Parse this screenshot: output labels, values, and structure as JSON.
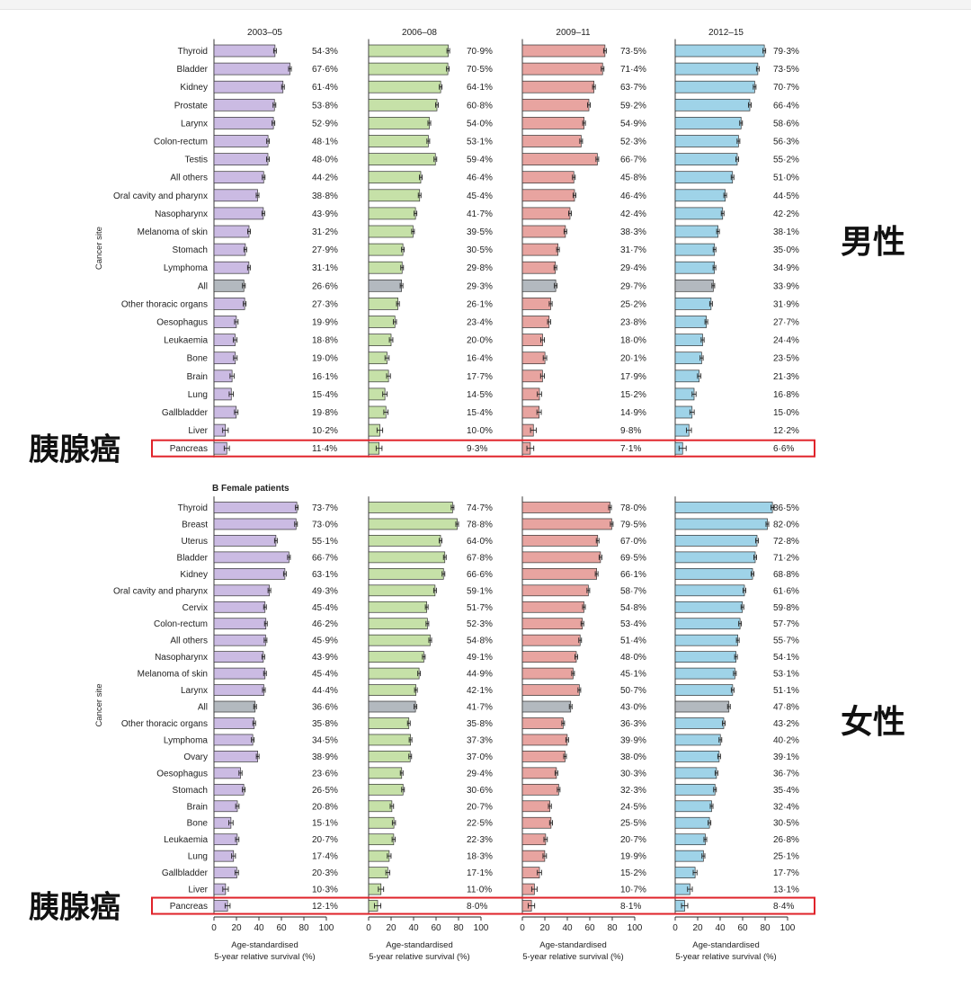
{
  "chart_data": [
    {
      "type": "bar",
      "orientation": "horizontal",
      "section_label": "",
      "ylabel": "Cancer site",
      "side_label": "男性",
      "highlight_label": "胰腺癌",
      "highlight_category": "Pancreas",
      "categories": [
        "Thyroid",
        "Bladder",
        "Kidney",
        "Prostate",
        "Larynx",
        "Colon-rectum",
        "Testis",
        "All others",
        "Oral cavity and pharynx",
        "Nasopharynx",
        "Melanoma of skin",
        "Stomach",
        "Lymphoma",
        "All",
        "Other thoracic organs",
        "Oesophagus",
        "Leukaemia",
        "Bone",
        "Brain",
        "Lung",
        "Gallbladder",
        "Liver",
        "Pancreas"
      ],
      "series": [
        {
          "name": "2003–05",
          "color": "#cbbbe3",
          "values": [
            54.3,
            67.6,
            61.4,
            53.8,
            52.9,
            48.1,
            48.0,
            44.2,
            38.8,
            43.9,
            31.2,
            27.9,
            31.1,
            26.6,
            27.3,
            19.9,
            18.8,
            19.0,
            16.1,
            15.4,
            19.8,
            10.2,
            11.4
          ],
          "labels": [
            "54·3%",
            "67·6%",
            "61·4%",
            "53·8%",
            "52·9%",
            "48·1%",
            "48·0%",
            "44·2%",
            "38·8%",
            "43·9%",
            "31·2%",
            "27·9%",
            "31·1%",
            "26·6%",
            "27·3%",
            "19·9%",
            "18·8%",
            "19·0%",
            "16·1%",
            "15·4%",
            "19·8%",
            "10·2%",
            "11·4%"
          ]
        },
        {
          "name": "2006–08",
          "color": "#c6e1a8",
          "values": [
            70.9,
            70.5,
            64.1,
            60.8,
            54.0,
            53.1,
            59.4,
            46.4,
            45.4,
            41.7,
            39.5,
            30.5,
            29.8,
            29.3,
            26.1,
            23.4,
            20.0,
            16.4,
            17.7,
            14.5,
            15.4,
            10.0,
            9.3
          ],
          "labels": [
            "70·9%",
            "70·5%",
            "64·1%",
            "60·8%",
            "54·0%",
            "53·1%",
            "59·4%",
            "46·4%",
            "45·4%",
            "41·7%",
            "39·5%",
            "30·5%",
            "29·8%",
            "29·3%",
            "26·1%",
            "23·4%",
            "20·0%",
            "16·4%",
            "17·7%",
            "14·5%",
            "15·4%",
            "10·0%",
            "9·3%"
          ]
        },
        {
          "name": "2009–11",
          "color": "#e8a4a0",
          "values": [
            73.5,
            71.4,
            63.7,
            59.2,
            54.9,
            52.3,
            66.7,
            45.8,
            46.4,
            42.4,
            38.3,
            31.7,
            29.4,
            29.7,
            25.2,
            23.8,
            18.0,
            20.1,
            17.9,
            15.2,
            14.9,
            9.8,
            7.1
          ],
          "labels": [
            "73·5%",
            "71·4%",
            "63·7%",
            "59·2%",
            "54·9%",
            "52·3%",
            "66·7%",
            "45·8%",
            "46·4%",
            "42·4%",
            "38·3%",
            "31·7%",
            "29·4%",
            "29·7%",
            "25·2%",
            "23·8%",
            "18·0%",
            "20·1%",
            "17·9%",
            "15·2%",
            "14·9%",
            "9·8%",
            "7·1%"
          ]
        },
        {
          "name": "2012–15",
          "color": "#9fd3e8",
          "values": [
            79.3,
            73.5,
            70.7,
            66.4,
            58.6,
            56.3,
            55.2,
            51.0,
            44.5,
            42.2,
            38.1,
            35.0,
            34.9,
            33.9,
            31.9,
            27.7,
            24.4,
            23.5,
            21.3,
            16.8,
            15.0,
            12.2,
            6.6
          ],
          "labels": [
            "79·3%",
            "73·5%",
            "70·7%",
            "66·4%",
            "58·6%",
            "56·3%",
            "55·2%",
            "51·0%",
            "44·5%",
            "42·2%",
            "38·1%",
            "35·0%",
            "34·9%",
            "33·9%",
            "31·9%",
            "27·7%",
            "24·4%",
            "23·5%",
            "21·3%",
            "16·8%",
            "15·0%",
            "12·2%",
            "6·6%"
          ]
        }
      ],
      "all_color": "#b3b9bf",
      "xlim": [
        0,
        100
      ]
    },
    {
      "type": "bar",
      "orientation": "horizontal",
      "section_label": "B  Female patients",
      "ylabel": "Cancer site",
      "side_label": "女性",
      "highlight_label": "胰腺癌",
      "highlight_category": "Pancreas",
      "categories": [
        "Thyroid",
        "Breast",
        "Uterus",
        "Bladder",
        "Kidney",
        "Oral cavity and pharynx",
        "Cervix",
        "Colon-rectum",
        "All others",
        "Nasopharynx",
        "Melanoma of skin",
        "Larynx",
        "All",
        "Other thoracic organs",
        "Lymphoma",
        "Ovary",
        "Oesophagus",
        "Stomach",
        "Brain",
        "Bone",
        "Leukaemia",
        "Lung",
        "Gallbladder",
        "Liver",
        "Pancreas"
      ],
      "series": [
        {
          "name": "2003–05",
          "color": "#cbbbe3",
          "values": [
            73.7,
            73.0,
            55.1,
            66.7,
            63.1,
            49.3,
            45.4,
            46.2,
            45.9,
            43.9,
            45.4,
            44.4,
            36.6,
            35.8,
            34.5,
            38.9,
            23.6,
            26.5,
            20.8,
            15.1,
            20.7,
            17.4,
            20.3,
            10.3,
            12.1
          ],
          "labels": [
            "73·7%",
            "73·0%",
            "55·1%",
            "66·7%",
            "63·1%",
            "49·3%",
            "45·4%",
            "46·2%",
            "45·9%",
            "43·9%",
            "45·4%",
            "44·4%",
            "36·6%",
            "35·8%",
            "34·5%",
            "38·9%",
            "23·6%",
            "26·5%",
            "20·8%",
            "15·1%",
            "20·7%",
            "17·4%",
            "20·3%",
            "10·3%",
            "12·1%"
          ]
        },
        {
          "name": "2006–08",
          "color": "#c6e1a8",
          "values": [
            74.7,
            78.8,
            64.0,
            67.8,
            66.6,
            59.1,
            51.7,
            52.3,
            54.8,
            49.1,
            44.9,
            42.1,
            41.7,
            35.8,
            37.3,
            37.0,
            29.4,
            30.6,
            20.7,
            22.5,
            22.3,
            18.3,
            17.1,
            11.0,
            8.0
          ],
          "labels": [
            "74·7%",
            "78·8%",
            "64·0%",
            "67·8%",
            "66·6%",
            "59·1%",
            "51·7%",
            "52·3%",
            "54·8%",
            "49·1%",
            "44·9%",
            "42·1%",
            "41·7%",
            "35·8%",
            "37·3%",
            "37·0%",
            "29·4%",
            "30·6%",
            "20·7%",
            "22·5%",
            "22·3%",
            "18·3%",
            "17·1%",
            "11·0%",
            "8·0%"
          ]
        },
        {
          "name": "2009–11",
          "color": "#e8a4a0",
          "values": [
            78.0,
            79.5,
            67.0,
            69.5,
            66.1,
            58.7,
            54.8,
            53.4,
            51.4,
            48.0,
            45.1,
            50.7,
            43.0,
            36.3,
            39.9,
            38.0,
            30.3,
            32.3,
            24.5,
            25.5,
            20.7,
            19.9,
            15.2,
            10.7,
            8.1
          ],
          "labels": [
            "78·0%",
            "79·5%",
            "67·0%",
            "69·5%",
            "66·1%",
            "58·7%",
            "54·8%",
            "53·4%",
            "51·4%",
            "48·0%",
            "45·1%",
            "50·7%",
            "43·0%",
            "36·3%",
            "39·9%",
            "38·0%",
            "30·3%",
            "32·3%",
            "24·5%",
            "25·5%",
            "20·7%",
            "19·9%",
            "15·2%",
            "10·7%",
            "8·1%"
          ]
        },
        {
          "name": "2012–15",
          "color": "#9fd3e8",
          "values": [
            86.5,
            82.0,
            72.8,
            71.2,
            68.8,
            61.6,
            59.8,
            57.7,
            55.7,
            54.1,
            53.1,
            51.1,
            47.8,
            43.2,
            40.2,
            39.1,
            36.7,
            35.4,
            32.4,
            30.5,
            26.8,
            25.1,
            17.7,
            13.1,
            8.4
          ],
          "labels": [
            "86·5%",
            "82·0%",
            "72·8%",
            "71·2%",
            "68·8%",
            "61·6%",
            "59·8%",
            "57·7%",
            "55·7%",
            "54·1%",
            "53·1%",
            "51·1%",
            "47·8%",
            "43·2%",
            "40·2%",
            "39·1%",
            "36·7%",
            "35·4%",
            "32·4%",
            "30·5%",
            "26·8%",
            "25·1%",
            "17·7%",
            "13·1%",
            "8·4%"
          ]
        }
      ],
      "all_color": "#b3b9bf",
      "xlim": [
        0,
        100
      ]
    }
  ],
  "axis": {
    "ticks": [
      "0",
      "20",
      "40",
      "60",
      "80",
      "100"
    ],
    "xlabel_line1": "Age-standardised",
    "xlabel_line2": "5-year relative survival (%)"
  },
  "colors": {
    "highlight_box": "#e0232a",
    "bar_outline": "#333333",
    "error_bar": "#222222"
  }
}
